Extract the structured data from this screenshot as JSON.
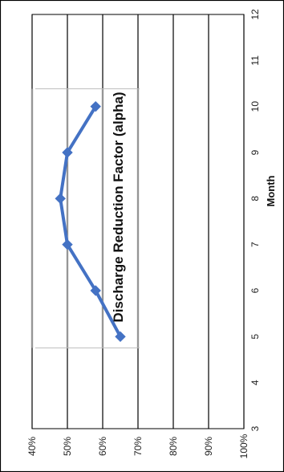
{
  "chart_data": {
    "type": "line",
    "title": "Discharge Reduction Factor (alpha)",
    "xlabel": "Month",
    "ylabel": "",
    "x": [
      5,
      6,
      7,
      8,
      9,
      10
    ],
    "series": [
      {
        "values": [
          0.65,
          0.58,
          0.5,
          0.48,
          0.5,
          0.58
        ],
        "color": "#4472C4"
      }
    ],
    "xlim": [
      3,
      12
    ],
    "ylim": [
      0.4,
      1.0
    ],
    "x_ticks": [
      "3",
      "4",
      "5",
      "6",
      "7",
      "8",
      "9",
      "10",
      "11",
      "12"
    ],
    "y_ticks": [
      "40%",
      "50%",
      "60%",
      "70%",
      "80%",
      "90%",
      "100%"
    ],
    "grid": true,
    "orientation": "rotated-90-clockwise",
    "colors": {
      "gridline": "#000000",
      "minor_gridline": "#bdbdbd",
      "frame": "#000000"
    }
  }
}
